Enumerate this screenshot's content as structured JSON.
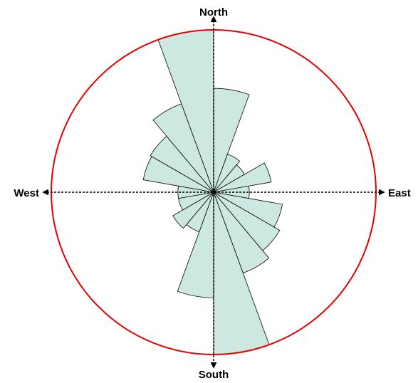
{
  "chart_data": {
    "type": "rose",
    "sector_width_deg": 20,
    "radius_max": 1.0,
    "sectors": [
      {
        "dir_deg": 350,
        "value": 1.0
      },
      {
        "dir_deg": 10,
        "value": 0.64
      },
      {
        "dir_deg": 30,
        "value": 0.25
      },
      {
        "dir_deg": 50,
        "value": 0.22
      },
      {
        "dir_deg": 70,
        "value": 0.36
      },
      {
        "dir_deg": 90,
        "value": 0.22
      },
      {
        "dir_deg": 110,
        "value": 0.43
      },
      {
        "dir_deg": 130,
        "value": 0.47
      },
      {
        "dir_deg": 150,
        "value": 0.53
      },
      {
        "dir_deg": 170,
        "value": 1.0
      },
      {
        "dir_deg": 190,
        "value": 0.65
      },
      {
        "dir_deg": 210,
        "value": 0.26
      },
      {
        "dir_deg": 230,
        "value": 0.29
      },
      {
        "dir_deg": 250,
        "value": 0.22
      },
      {
        "dir_deg": 270,
        "value": 0.22
      },
      {
        "dir_deg": 290,
        "value": 0.44
      },
      {
        "dir_deg": 310,
        "value": 0.45
      },
      {
        "dir_deg": 330,
        "value": 0.58
      }
    ],
    "labels": {
      "north": "North",
      "south": "South",
      "east": "East",
      "west": "West"
    },
    "colors": {
      "sector_fill": "#cce8e0",
      "sector_stroke": "#000000",
      "circle": "#e60000",
      "axis": "#000000"
    }
  }
}
